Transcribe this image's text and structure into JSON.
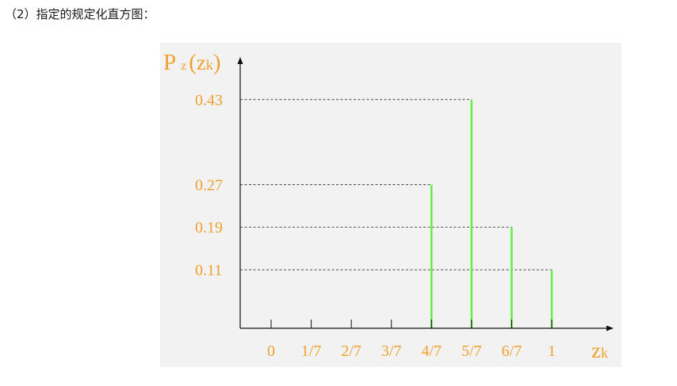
{
  "caption": "（2）指定的规定化直方图：",
  "colors": {
    "label": "#f0a030",
    "bar": "#66ee44",
    "axis": "#111111",
    "panel": "#f2f2f2"
  },
  "chart_data": {
    "type": "bar",
    "ylabel": {
      "main": "P",
      "sub": "z",
      "paren_open": "(",
      "var": "z",
      "var_sub": "k",
      "paren_close": ")"
    },
    "xlabel": {
      "var": "z",
      "var_sub": "k"
    },
    "categories": [
      "0",
      "1/7",
      "2/7",
      "3/7",
      "4/7",
      "5/7",
      "6/7",
      "1"
    ],
    "x": [
      0,
      0.142857,
      0.285714,
      0.428571,
      0.571429,
      0.714286,
      0.857143,
      1.0
    ],
    "values": [
      0,
      0,
      0,
      0,
      0.27,
      0.43,
      0.19,
      0.11
    ],
    "ytick_labels": [
      "0.43",
      "0.27",
      "0.19",
      "0.11"
    ],
    "yticks": [
      0.43,
      0.27,
      0.19,
      0.11
    ],
    "ylim": [
      0,
      0.5
    ],
    "grid": false,
    "dashed_guides": true
  }
}
